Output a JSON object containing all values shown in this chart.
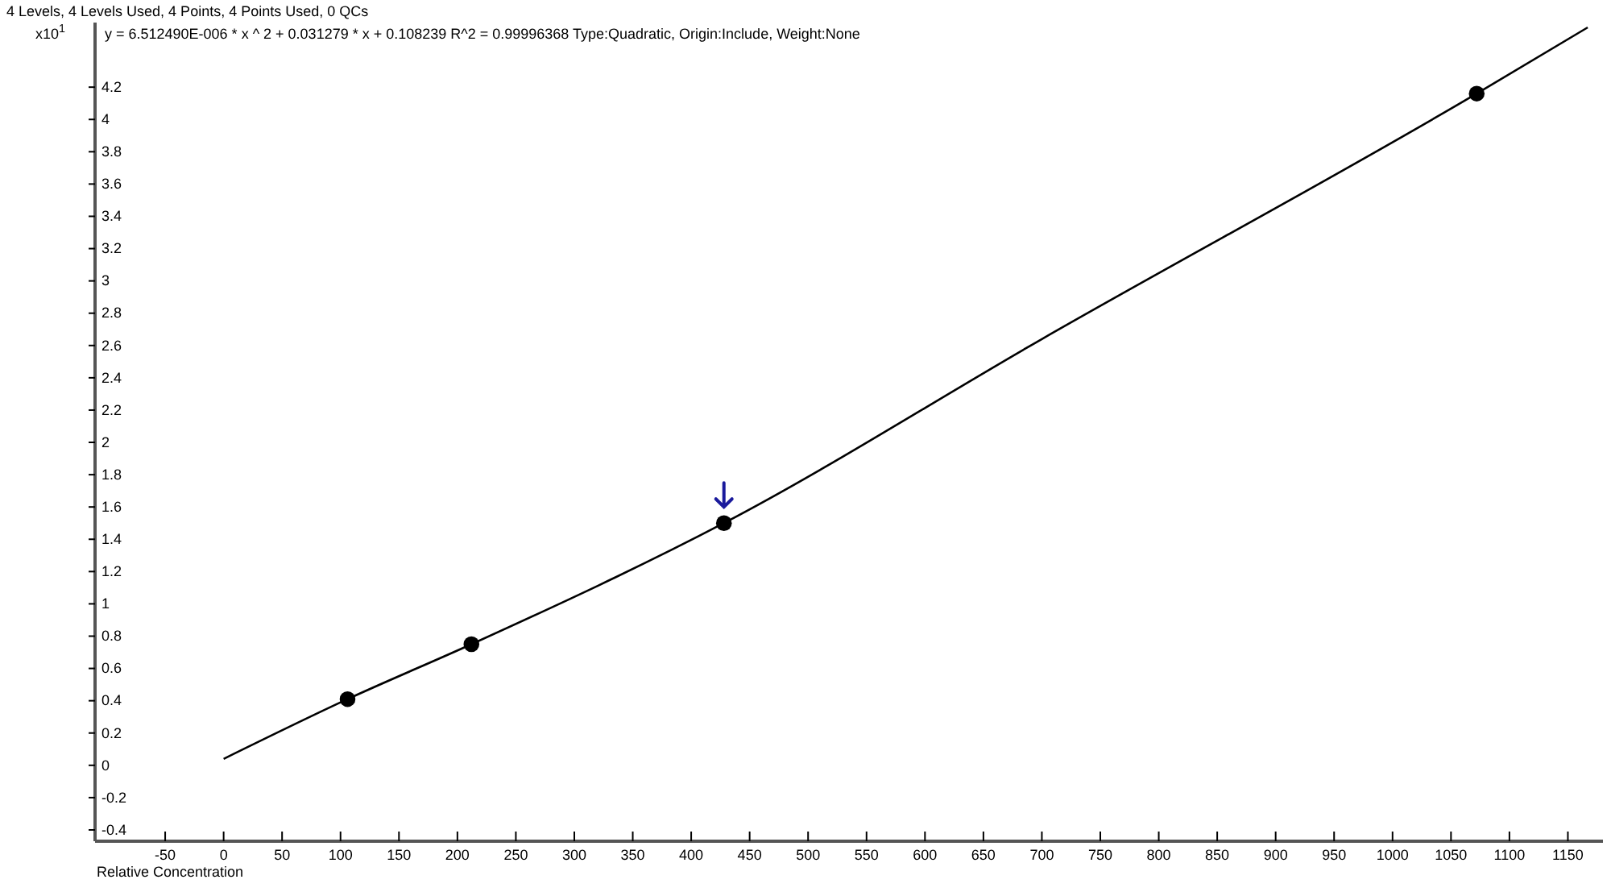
{
  "chart_data": {
    "type": "scatter",
    "title": "4 Levels, 4 Levels Used, 4 Points, 4 Points Used, 0 QCs",
    "xlabel": "Relative Concentration",
    "ylabel": "x10$^{1}$",
    "annotations": [
      "y = 6.512490E-006 * x ^ 2  + 0.031279 * x  + 0.108239  R^2 = 0.99996368  Type:Quadratic, Origin:Include, Weight:None"
    ],
    "series": [
      {
        "color": "#000000",
        "marker": "circle",
        "x": [
          106,
          212,
          428,
          1072
        ],
        "values": [
          0.41,
          0.75,
          1.5,
          4.16
        ]
      },
      {
        "type": "line",
        "color": "#000000",
        "marker": "none",
        "x": [
          0,
          106,
          212,
          428,
          700,
          1072,
          1167
        ],
        "values": [
          0.04,
          0.41,
          0.75,
          1.5,
          2.64,
          4.16,
          4.57
        ]
      }
    ],
    "xlim": [
      -110,
      1180
    ],
    "ylim": [
      -0.47,
      4.6
    ],
    "xticks": [
      -50,
      0,
      50,
      100,
      150,
      200,
      250,
      300,
      350,
      400,
      450,
      500,
      550,
      600,
      650,
      700,
      750,
      800,
      850,
      900,
      950,
      1000,
      1050,
      1100,
      1150
    ],
    "yticks": [
      -0.4,
      -0.2,
      0,
      0.2,
      0.4,
      0.6,
      0.8,
      1,
      1.2,
      1.4,
      1.6,
      1.8,
      2,
      2.2,
      2.4,
      2.6,
      2.8,
      3,
      3.2,
      3.4,
      3.6,
      3.8,
      4,
      4.2
    ],
    "grid": false
  }
}
